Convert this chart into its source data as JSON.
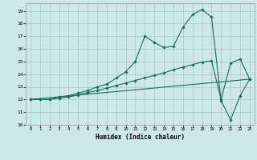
{
  "xlabel": "Humidex (Indice chaleur)",
  "background_color": "#cce8e8",
  "grid_color": "#aacece",
  "line_color": "#1a6b5a",
  "xlim": [
    -0.5,
    23.5
  ],
  "ylim": [
    10.0,
    19.6
  ],
  "yticks": [
    10,
    11,
    12,
    13,
    14,
    15,
    16,
    17,
    18,
    19
  ],
  "xticks": [
    0,
    1,
    2,
    3,
    4,
    5,
    6,
    7,
    8,
    9,
    10,
    11,
    12,
    13,
    14,
    15,
    16,
    17,
    18,
    19,
    20,
    21,
    22,
    23
  ],
  "line1_x": [
    0,
    1,
    2,
    3,
    4,
    5,
    6,
    7,
    8,
    9,
    10,
    11,
    12,
    13,
    14,
    15,
    16,
    17,
    18,
    19,
    20,
    21,
    22,
    23
  ],
  "line1_y": [
    12.0,
    12.0,
    12.0,
    12.2,
    12.3,
    12.5,
    12.7,
    13.0,
    13.2,
    13.7,
    14.2,
    15.0,
    17.0,
    16.5,
    16.1,
    16.2,
    17.7,
    18.7,
    19.1,
    18.5,
    11.9,
    10.4,
    12.3,
    13.6
  ],
  "line2_x": [
    0,
    1,
    2,
    3,
    4,
    5,
    6,
    7,
    8,
    9,
    10,
    11,
    12,
    13,
    14,
    15,
    16,
    17,
    18,
    19,
    20,
    21,
    22,
    23
  ],
  "line2_y": [
    12.0,
    12.0,
    12.0,
    12.1,
    12.2,
    12.35,
    12.55,
    12.7,
    12.9,
    13.1,
    13.3,
    13.5,
    13.7,
    13.9,
    14.1,
    14.35,
    14.55,
    14.75,
    14.95,
    15.05,
    12.0,
    14.85,
    15.2,
    13.6
  ],
  "line3_x": [
    0,
    23
  ],
  "line3_y": [
    12.0,
    13.6
  ]
}
